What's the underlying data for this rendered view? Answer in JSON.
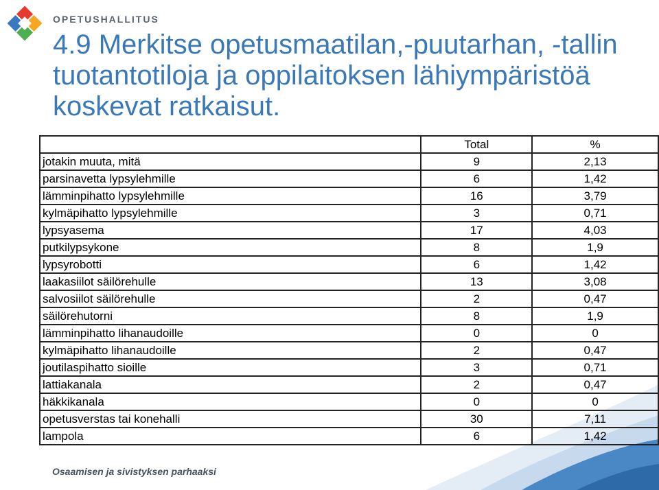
{
  "header": {
    "org_name": "OPETUSHALLITUS",
    "title": "4.9 Merkitse opetusmaatilan,-puutarhan, -tallin tuotantotiloja ja oppilaitoksen lähiympäristöä koskevat ratkaisut."
  },
  "table": {
    "columns": [
      "",
      "Total",
      "%"
    ],
    "rows": [
      {
        "label": "jotakin muuta, mitä",
        "total": "9",
        "pct": "2,13"
      },
      {
        "label": "parsinavetta lypsylehmille",
        "total": "6",
        "pct": "1,42"
      },
      {
        "label": "lämminpihatto lypsylehmille",
        "total": "16",
        "pct": "3,79"
      },
      {
        "label": "kylmäpihatto lypsylehmille",
        "total": "3",
        "pct": "0,71"
      },
      {
        "label": "lypsyasema",
        "total": "17",
        "pct": "4,03"
      },
      {
        "label": "putkilypsykone",
        "total": "8",
        "pct": "1,9"
      },
      {
        "label": "lypsyrobotti",
        "total": "6",
        "pct": "1,42"
      },
      {
        "label": "laakasiilot säilörehulle",
        "total": "13",
        "pct": "3,08"
      },
      {
        "label": "salvosiilot säilörehulle",
        "total": "2",
        "pct": "0,47"
      },
      {
        "label": "säilörehutorni",
        "total": "8",
        "pct": "1,9"
      },
      {
        "label": "lämminpihatto lihanaudoille",
        "total": "0",
        "pct": "0"
      },
      {
        "label": "kylmäpihatto lihanaudoille",
        "total": "2",
        "pct": "0,47"
      },
      {
        "label": "joutilaspihatto sioille",
        "total": "3",
        "pct": "0,71"
      },
      {
        "label": "lattiakanala",
        "total": "2",
        "pct": "0,47"
      },
      {
        "label": "häkkikanala",
        "total": "0",
        "pct": "0"
      },
      {
        "label": "opetusverstas tai konehalli",
        "total": "30",
        "pct": "7,11"
      },
      {
        "label": "lampola",
        "total": "6",
        "pct": "1,42"
      }
    ]
  },
  "footer": {
    "slogan": "Osaamisen ja sivistyksen parhaaksi"
  },
  "colors": {
    "title": "#3a78b8",
    "swoosh_blue": "#4a87c5",
    "swoosh_light": "#c7d9ec"
  },
  "icons": {
    "logo": "opetushallitus-diamond-logo"
  }
}
